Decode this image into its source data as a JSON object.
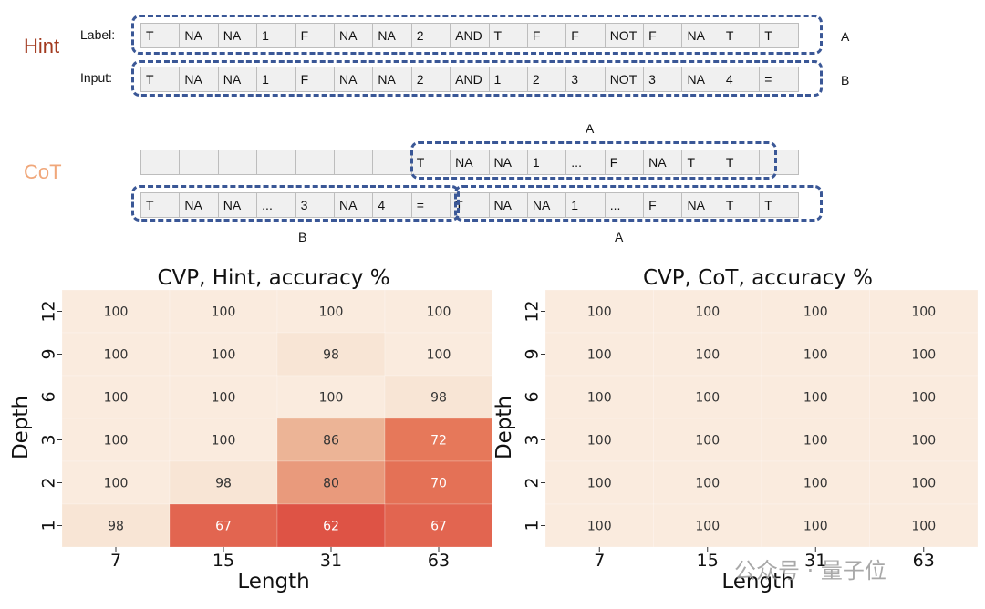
{
  "diagram": {
    "hint_label": "Hint",
    "cot_label": "CoT",
    "row_label_label": "Label:",
    "row_input_label": "Input:",
    "label_cells": [
      "T",
      "NA",
      "NA",
      "1",
      "F",
      "NA",
      "NA",
      "2",
      "AND",
      "T",
      "F",
      "F",
      "NOT",
      "F",
      "NA",
      "T",
      "T"
    ],
    "input_cells": [
      "T",
      "NA",
      "NA",
      "1",
      "F",
      "NA",
      "NA",
      "2",
      "AND",
      "1",
      "2",
      "3",
      "NOT",
      "3",
      "NA",
      "4",
      "="
    ],
    "cot_top_cells": [
      "",
      "",
      "",
      "",
      "",
      "",
      "",
      "T",
      "NA",
      "NA",
      "1",
      "...",
      "F",
      "NA",
      "T",
      "T",
      ""
    ],
    "cot_bottom_cells": [
      "T",
      "NA",
      "NA",
      "...",
      "3",
      "NA",
      "4",
      "=",
      "T",
      "NA",
      "NA",
      "1",
      "...",
      "F",
      "NA",
      "T",
      "T"
    ],
    "marker_a": "A",
    "marker_b": "B",
    "hint_color": "#a23a1f",
    "cot_color": "#f0a77a",
    "box_color": "#3a5796"
  },
  "chart_data": [
    {
      "type": "heatmap",
      "title": "CVP, Hint, accuracy %",
      "xlabel": "Length",
      "ylabel": "Depth",
      "x": [
        "7",
        "15",
        "31",
        "63"
      ],
      "y": [
        "12",
        "9",
        "6",
        "3",
        "2",
        "1"
      ],
      "values": [
        [
          100,
          100,
          100,
          100
        ],
        [
          100,
          100,
          98,
          100
        ],
        [
          100,
          100,
          100,
          98
        ],
        [
          100,
          100,
          86,
          72
        ],
        [
          100,
          98,
          80,
          70
        ],
        [
          98,
          67,
          62,
          67
        ]
      ],
      "colormap": "light-peach-to-red",
      "range": [
        60,
        100
      ]
    },
    {
      "type": "heatmap",
      "title": "CVP, CoT, accuracy %",
      "xlabel": "Length",
      "ylabel": "Depth",
      "x": [
        "7",
        "15",
        "31",
        "63"
      ],
      "y": [
        "12",
        "9",
        "6",
        "3",
        "2",
        "1"
      ],
      "values": [
        [
          100,
          100,
          100,
          100
        ],
        [
          100,
          100,
          100,
          100
        ],
        [
          100,
          100,
          100,
          100
        ],
        [
          100,
          100,
          100,
          100
        ],
        [
          100,
          100,
          100,
          100
        ],
        [
          100,
          100,
          100,
          100
        ]
      ],
      "colormap": "light-peach-to-red",
      "range": [
        60,
        100
      ]
    }
  ],
  "watermark": "公众号 · 量子位"
}
